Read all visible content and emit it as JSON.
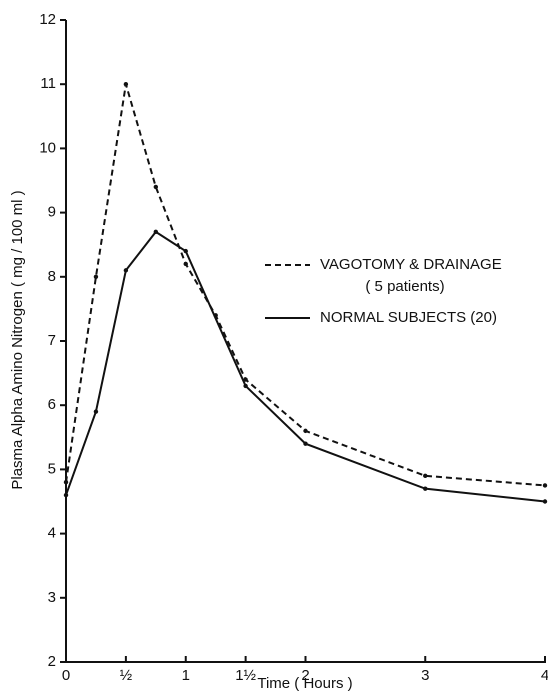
{
  "chart_data": {
    "type": "line",
    "xlabel": "Time ( Hours )",
    "ylabel": "Plasma Alpha Amino Nitrogen  ( mg / 100 ml )",
    "xlim": [
      0,
      4
    ],
    "ylim": [
      2,
      12
    ],
    "xticks": [
      0,
      {
        "value": 0.5,
        "label": "½"
      },
      1,
      {
        "value": 1.5,
        "label": "1½"
      },
      2,
      3,
      4
    ],
    "yticks": [
      2,
      3,
      4,
      5,
      6,
      7,
      8,
      9,
      10,
      11,
      12
    ],
    "series": [
      {
        "name": "VAGOTOMY & DRAINAGE",
        "note": "( 5 patients)",
        "color": "#111111",
        "dash": true,
        "x": [
          0,
          0.25,
          0.5,
          0.75,
          1,
          1.25,
          1.5,
          2,
          3,
          4
        ],
        "values": [
          4.8,
          8.0,
          11.0,
          9.4,
          8.2,
          7.4,
          6.4,
          5.6,
          4.9,
          4.75
        ]
      },
      {
        "name": "NORMAL SUBJECTS (20)",
        "color": "#111111",
        "dash": false,
        "x": [
          0,
          0.25,
          0.5,
          0.75,
          1,
          1.5,
          2,
          3,
          4
        ],
        "values": [
          4.6,
          5.9,
          8.1,
          8.7,
          8.4,
          6.3,
          5.4,
          4.7,
          4.5
        ]
      }
    ]
  }
}
